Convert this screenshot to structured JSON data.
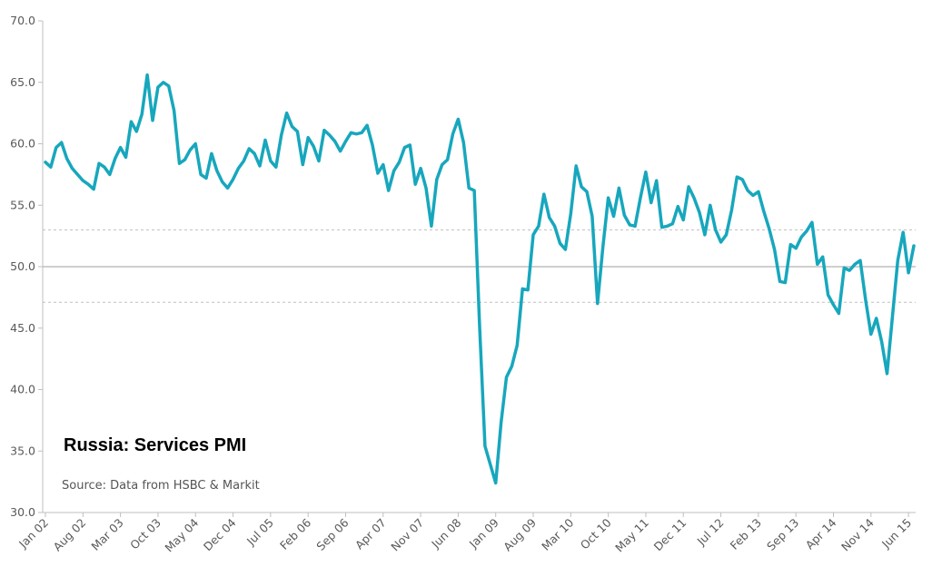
{
  "chart_data": {
    "type": "line",
    "title": "Russia: Services PMI",
    "source": "Source: Data from HSBC & Markit",
    "ylim": [
      30,
      70
    ],
    "y_ticks": [
      "30.0",
      "35.0",
      "40.0",
      "45.0",
      "50.0",
      "55.0",
      "60.0",
      "65.0",
      "70.0"
    ],
    "x_tick_labels": [
      "Jan 02",
      "Aug 02",
      "Mar 03",
      "Oct 03",
      "May 04",
      "Dec 04",
      "Jul 05",
      "Feb 06",
      "Sep 06",
      "Apr 07",
      "Nov 07",
      "Jun 08",
      "Jan 09",
      "Aug 09",
      "Mar 10",
      "Oct 10",
      "May 11",
      "Dec 11",
      "Jul 12",
      "Feb 13",
      "Sep 13",
      "Apr 14",
      "Nov 14",
      "Jun 15"
    ],
    "x_start": "Jan 02",
    "x_end": "Jul 15",
    "reference_lines": [
      {
        "value": 50.0,
        "style": "solid",
        "color": "#bfbfbf"
      },
      {
        "value": 53.0,
        "style": "dashed",
        "color": "#bfbfbf"
      },
      {
        "value": 47.1,
        "style": "dashed",
        "color": "#bfbfbf"
      }
    ],
    "series": [
      {
        "color": "#17a7bd",
        "values": [
          58.5,
          58.1,
          59.7,
          60.1,
          58.8,
          58.0,
          57.5,
          57.0,
          56.7,
          56.3,
          58.4,
          58.1,
          57.5,
          58.8,
          59.7,
          58.9,
          61.8,
          61.0,
          62.4,
          65.6,
          61.9,
          64.6,
          65.0,
          64.7,
          62.7,
          58.4,
          58.7,
          59.5,
          60.0,
          57.5,
          57.2,
          59.2,
          57.8,
          56.9,
          56.4,
          57.1,
          58.0,
          58.6,
          59.6,
          59.2,
          58.2,
          60.3,
          58.6,
          58.1,
          60.7,
          62.5,
          61.4,
          61.0,
          58.3,
          60.5,
          59.8,
          58.6,
          61.1,
          60.7,
          60.2,
          59.4,
          60.2,
          60.9,
          60.8,
          60.9,
          61.5,
          59.9,
          57.6,
          58.3,
          56.2,
          57.8,
          58.5,
          59.7,
          59.9,
          56.7,
          58.0,
          56.4,
          53.3,
          57.1,
          58.3,
          58.7,
          60.8,
          62.0,
          60.1,
          56.4,
          56.2,
          45.1,
          35.4,
          33.9,
          32.4,
          37.3,
          41.0,
          41.9,
          43.6,
          48.2,
          48.1,
          52.6,
          53.3,
          55.9,
          54.0,
          53.3,
          51.9,
          51.4,
          54.3,
          58.2,
          56.5,
          56.1,
          54.1,
          47.0,
          51.6,
          55.6,
          54.1,
          56.4,
          54.2,
          53.4,
          53.3,
          55.6,
          57.7,
          55.2,
          57.0,
          53.2,
          53.3,
          53.5,
          54.9,
          53.8,
          56.5,
          55.6,
          54.4,
          52.6,
          55.0,
          53.0,
          52.0,
          52.6,
          54.6,
          57.3,
          57.1,
          56.2,
          55.8,
          56.1,
          54.5,
          53.1,
          51.4,
          48.8,
          48.7,
          51.8,
          51.5,
          52.4,
          52.9,
          53.6,
          50.2,
          50.8,
          47.7,
          46.9,
          46.2,
          49.9,
          49.7,
          50.2,
          50.5,
          47.3,
          44.5,
          45.8,
          43.9,
          41.3,
          45.9,
          50.5,
          52.8,
          49.5,
          51.7
        ]
      }
    ]
  }
}
